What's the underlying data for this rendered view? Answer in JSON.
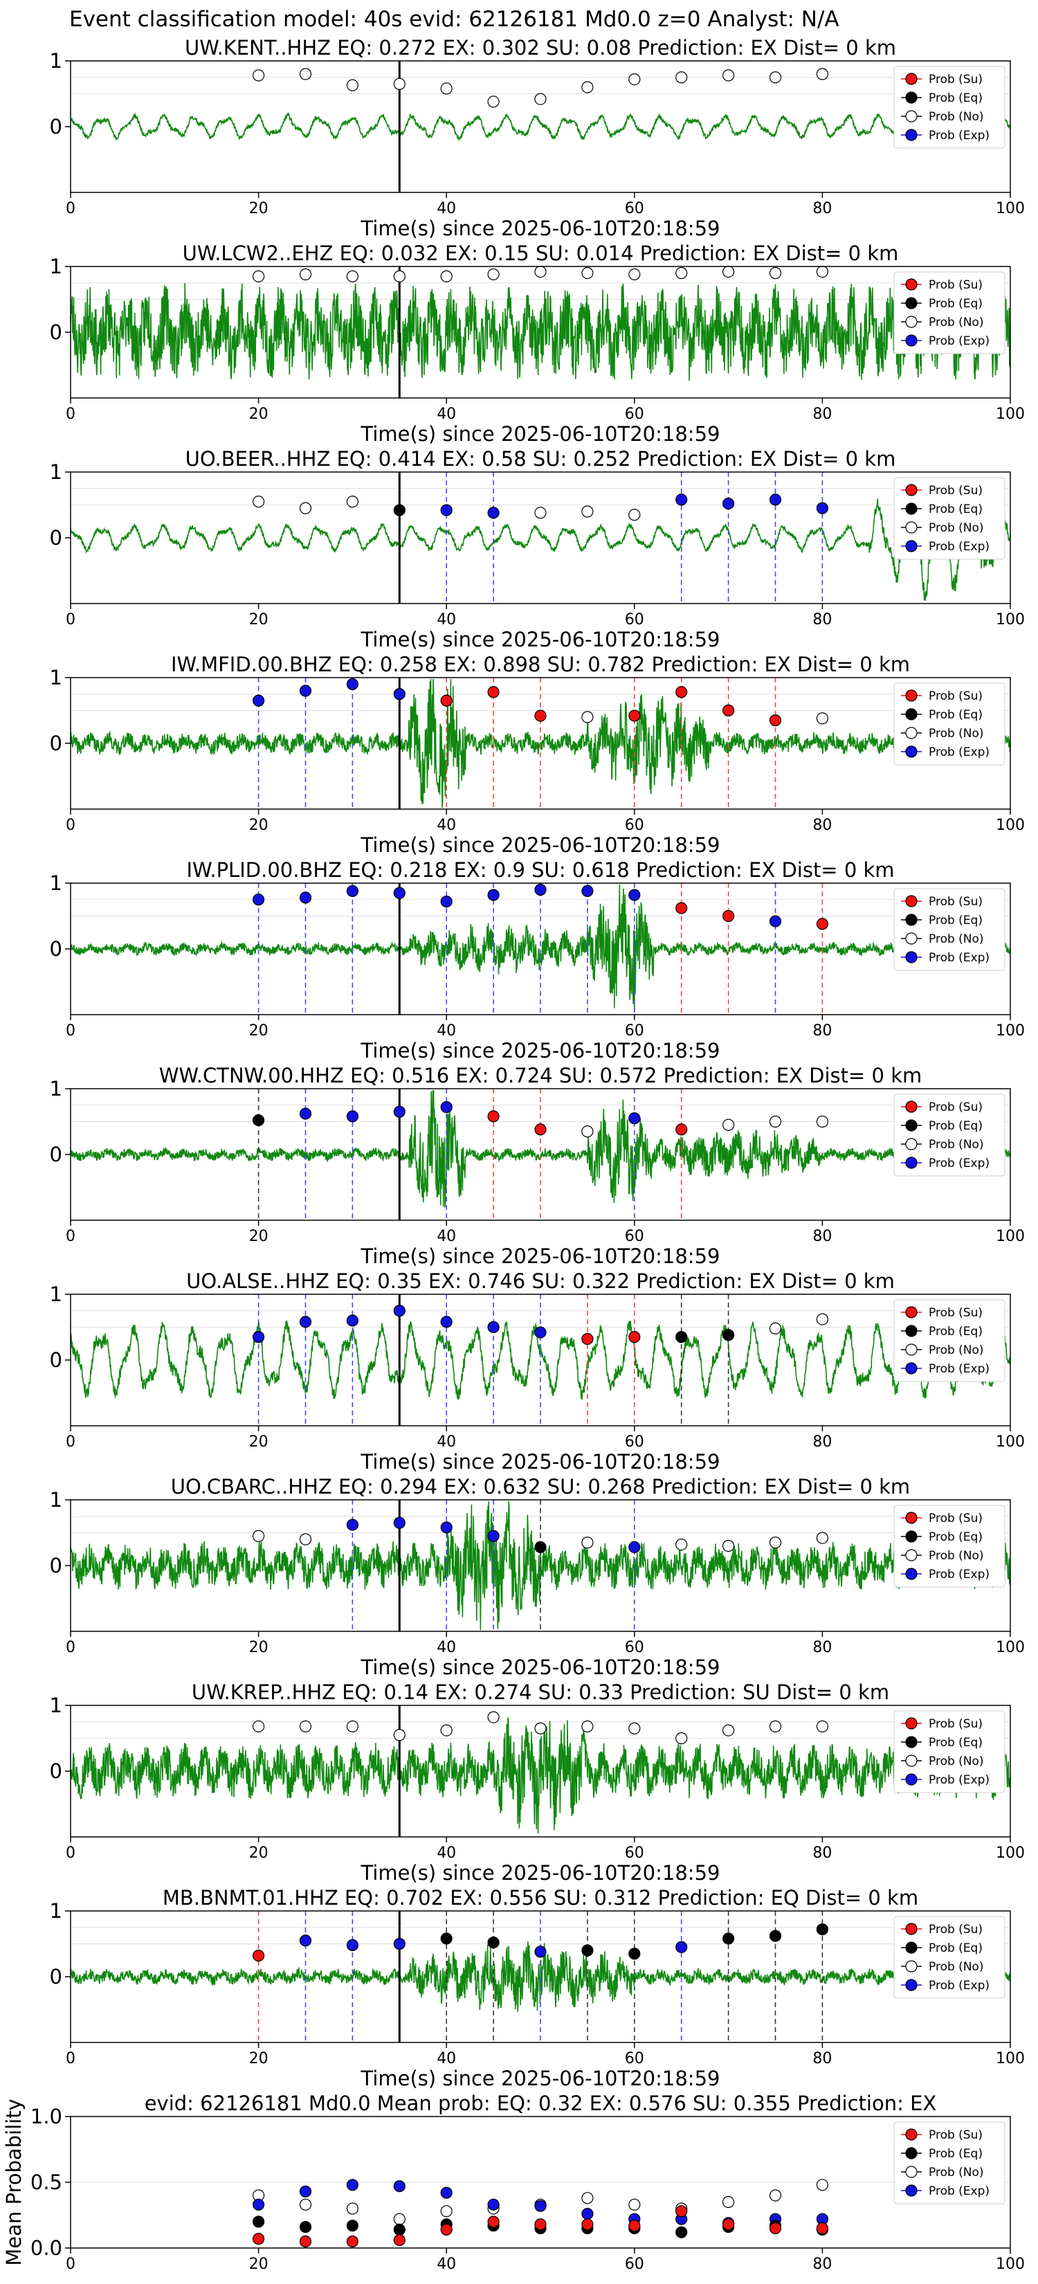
{
  "figure_title": "Event classification model: 40s evid: 62126181 Md0.0 z=0 Analyst: N/A",
  "xlabel": "Time(s) since 2025-06-10T20:18:59",
  "x_ticks": [
    0,
    20,
    40,
    60,
    80,
    100
  ],
  "legend": [
    "Prob (Su)",
    "Prob (Eq)",
    "Prob (No)",
    "Prob (Exp)"
  ],
  "colors": {
    "Su": "#ee1111",
    "Eq": "#000000",
    "No": "#ffffff",
    "Exp": "#1111dd",
    "waveform": "#118811",
    "vline_su": "#ee4444",
    "vline_eq": "#333333",
    "vline_exp": "#4444ee"
  },
  "window_times": [
    20,
    25,
    30,
    35,
    40,
    45,
    50,
    55,
    60,
    65,
    70,
    75,
    80
  ],
  "chart_data": [
    {
      "type": "line",
      "title": "UW.KENT..HHZ   EQ: 0.272   EX: 0.302   SU: 0.08   Prediction: EX    Dist= 0 km",
      "xlim": [
        0,
        100
      ],
      "ylim": [
        -1,
        1
      ],
      "y_ticks": [
        0,
        1
      ],
      "marker": 35,
      "waveform": {
        "seed": 11,
        "style": "smooth",
        "amp": 0.18,
        "burst": []
      },
      "points": [
        [
          "No",
          0.78
        ],
        [
          "No",
          0.8
        ],
        [
          "No",
          0.63
        ],
        [
          "No",
          0.65
        ],
        [
          "No",
          0.58
        ],
        [
          "No",
          0.38
        ],
        [
          "No",
          0.42
        ],
        [
          "No",
          0.6
        ],
        [
          "No",
          0.72
        ],
        [
          "No",
          0.75
        ],
        [
          "No",
          0.78
        ],
        [
          "No",
          0.75
        ],
        [
          "No",
          0.8
        ]
      ]
    },
    {
      "type": "line",
      "title": "UW.LCW2..EHZ   EQ: 0.032   EX: 0.15   SU: 0.014   Prediction: EX    Dist= 0 km",
      "xlim": [
        0,
        100
      ],
      "ylim": [
        -1,
        1
      ],
      "y_ticks": [
        0,
        1
      ],
      "marker": 35,
      "waveform": {
        "seed": 23,
        "style": "noise",
        "amp": 0.6,
        "burst": []
      },
      "points": [
        [
          "No",
          0.85
        ],
        [
          "No",
          0.88
        ],
        [
          "No",
          0.85
        ],
        [
          "No",
          0.85
        ],
        [
          "No",
          0.85
        ],
        [
          "No",
          0.88
        ],
        [
          "No",
          0.92
        ],
        [
          "No",
          0.9
        ],
        [
          "No",
          0.88
        ],
        [
          "No",
          0.9
        ],
        [
          "No",
          0.92
        ],
        [
          "No",
          0.9
        ],
        [
          "No",
          0.92
        ]
      ]
    },
    {
      "type": "line",
      "title": "UO.BEER..HHZ   EQ: 0.414   EX: 0.58   SU: 0.252   Prediction: EX    Dist= 0 km",
      "xlim": [
        0,
        100
      ],
      "ylim": [
        -1,
        1
      ],
      "y_ticks": [
        0,
        1
      ],
      "marker": 35,
      "waveform": {
        "seed": 37,
        "style": "smooth",
        "amp": 0.2,
        "burst": [
          [
            85,
            100,
            0.7
          ]
        ]
      },
      "points": [
        [
          "No",
          0.55
        ],
        [
          "No",
          0.45
        ],
        [
          "No",
          0.55
        ],
        [
          "Eq",
          0.42
        ],
        [
          "Exp",
          0.42
        ],
        [
          "Exp",
          0.38
        ],
        [
          "No",
          0.38
        ],
        [
          "No",
          0.4
        ],
        [
          "No",
          0.35
        ],
        [
          "Exp",
          0.58
        ],
        [
          "Exp",
          0.52
        ],
        [
          "Exp",
          0.58
        ],
        [
          "Exp",
          0.45
        ]
      ]
    },
    {
      "type": "line",
      "title": "IW.MFID.00.BHZ   EQ: 0.258   EX: 0.898   SU: 0.782   Prediction: EX    Dist= 0 km",
      "xlim": [
        0,
        100
      ],
      "ylim": [
        -1,
        1
      ],
      "y_ticks": [
        0,
        1
      ],
      "marker": 35,
      "waveform": {
        "seed": 41,
        "style": "noise",
        "amp": 0.14,
        "burst": [
          [
            36,
            42,
            0.85
          ],
          [
            55,
            68,
            0.5
          ]
        ]
      },
      "points": [
        [
          "Exp",
          0.65
        ],
        [
          "Exp",
          0.8
        ],
        [
          "Exp",
          0.9
        ],
        [
          "Exp",
          0.75
        ],
        [
          "Su",
          0.65
        ],
        [
          "Su",
          0.78
        ],
        [
          "Su",
          0.42
        ],
        [
          "No",
          0.4
        ],
        [
          "Su",
          0.42
        ],
        [
          "Su",
          0.78
        ],
        [
          "Su",
          0.5
        ],
        [
          "Su",
          0.35
        ],
        [
          "No",
          0.38
        ]
      ]
    },
    {
      "type": "line",
      "title": "IW.PLID.00.BHZ   EQ: 0.218   EX: 0.9   SU: 0.618   Prediction: EX    Dist= 0 km",
      "xlim": [
        0,
        100
      ],
      "ylim": [
        -1,
        1
      ],
      "y_ticks": [
        0,
        1
      ],
      "marker": 35,
      "waveform": {
        "seed": 53,
        "style": "noise",
        "amp": 0.08,
        "burst": [
          [
            36,
            55,
            0.25
          ],
          [
            55,
            62,
            0.9
          ]
        ]
      },
      "points": [
        [
          "Exp",
          0.75
        ],
        [
          "Exp",
          0.78
        ],
        [
          "Exp",
          0.88
        ],
        [
          "Exp",
          0.85
        ],
        [
          "Exp",
          0.72
        ],
        [
          "Exp",
          0.82
        ],
        [
          "Exp",
          0.9
        ],
        [
          "Exp",
          0.88
        ],
        [
          "Exp",
          0.82
        ],
        [
          "Su",
          0.62
        ],
        [
          "Su",
          0.5
        ],
        [
          "Exp",
          0.42
        ],
        [
          "Su",
          0.38
        ]
      ]
    },
    {
      "type": "line",
      "title": "WW.CTNW.00.HHZ   EQ: 0.516   EX: 0.724   SU: 0.572   Prediction: EX    Dist= 0 km",
      "xlim": [
        0,
        100
      ],
      "ylim": [
        -1,
        1
      ],
      "y_ticks": [
        0,
        1
      ],
      "marker": 35,
      "waveform": {
        "seed": 67,
        "style": "noise",
        "amp": 0.08,
        "burst": [
          [
            36,
            42,
            0.8
          ],
          [
            55,
            62,
            0.6
          ],
          [
            62,
            80,
            0.25
          ]
        ]
      },
      "points": [
        [
          "Eq",
          0.52
        ],
        [
          "Exp",
          0.62
        ],
        [
          "Exp",
          0.58
        ],
        [
          "Exp",
          0.65
        ],
        [
          "Exp",
          0.72
        ],
        [
          "Su",
          0.58
        ],
        [
          "Su",
          0.38
        ],
        [
          "No",
          0.35
        ],
        [
          "Exp",
          0.55
        ],
        [
          "Su",
          0.38
        ],
        [
          "No",
          0.45
        ],
        [
          "No",
          0.5
        ],
        [
          "No",
          0.5
        ]
      ]
    },
    {
      "type": "line",
      "title": "UO.ALSE..HHZ   EQ: 0.35  EX: 0.746  SU: 0.322   Prediction: EX    Dist= 0 km",
      "xlim": [
        0,
        100
      ],
      "ylim": [
        -1,
        1
      ],
      "y_ticks": [
        0,
        1
      ],
      "marker": 35,
      "waveform": {
        "seed": 79,
        "style": "smooth",
        "amp": 0.55,
        "burst": []
      },
      "points": [
        [
          "Exp",
          0.35
        ],
        [
          "Exp",
          0.58
        ],
        [
          "Exp",
          0.6
        ],
        [
          "Exp",
          0.75
        ],
        [
          "Exp",
          0.58
        ],
        [
          "Exp",
          0.5
        ],
        [
          "Exp",
          0.42
        ],
        [
          "Su",
          0.32
        ],
        [
          "Su",
          0.35
        ],
        [
          "Eq",
          0.35
        ],
        [
          "Eq",
          0.38
        ],
        [
          "No",
          0.48
        ],
        [
          "No",
          0.62
        ]
      ]
    },
    {
      "type": "line",
      "title": "UO.CBARC..HHZ   EQ: 0.294   EX: 0.632   SU: 0.268   Prediction: EX    Dist= 0 km",
      "xlim": [
        0,
        100
      ],
      "ylim": [
        -1,
        1
      ],
      "y_ticks": [
        0,
        1
      ],
      "marker": 35,
      "waveform": {
        "seed": 83,
        "style": "noise",
        "amp": 0.3,
        "burst": [
          [
            40,
            50,
            0.6
          ]
        ]
      },
      "points": [
        [
          "No",
          0.45
        ],
        [
          "No",
          0.4
        ],
        [
          "Exp",
          0.62
        ],
        [
          "Exp",
          0.65
        ],
        [
          "Exp",
          0.58
        ],
        [
          "Exp",
          0.45
        ],
        [
          "Eq",
          0.28
        ],
        [
          "No",
          0.35
        ],
        [
          "Exp",
          0.28
        ],
        [
          "No",
          0.32
        ],
        [
          "No",
          0.3
        ],
        [
          "No",
          0.35
        ],
        [
          "No",
          0.42
        ]
      ]
    },
    {
      "type": "line",
      "title": "UW.KREP..HHZ   EQ: 0.14   EX: 0.274   SU: 0.33   Prediction: SU    Dist= 0 km",
      "xlim": [
        0,
        100
      ],
      "ylim": [
        -1,
        1
      ],
      "y_ticks": [
        0,
        1
      ],
      "marker": 35,
      "waveform": {
        "seed": 97,
        "style": "noise",
        "amp": 0.35,
        "burst": [
          [
            45,
            55,
            0.45
          ]
        ]
      },
      "points": [
        [
          "No",
          0.68
        ],
        [
          "No",
          0.68
        ],
        [
          "No",
          0.68
        ],
        [
          "No",
          0.55
        ],
        [
          "No",
          0.62
        ],
        [
          "No",
          0.82
        ],
        [
          "No",
          0.65
        ],
        [
          "No",
          0.68
        ],
        [
          "No",
          0.65
        ],
        [
          "No",
          0.5
        ],
        [
          "No",
          0.62
        ],
        [
          "No",
          0.68
        ],
        [
          "No",
          0.68
        ]
      ]
    },
    {
      "type": "line",
      "title": "MB.BNMT.01.HHZ   EQ: 0.702  EX: 0.556  SU: 0.312   Prediction: EQ    Dist= 0 km",
      "xlim": [
        0,
        100
      ],
      "ylim": [
        -1,
        1
      ],
      "y_ticks": [
        0,
        1
      ],
      "marker": 35,
      "waveform": {
        "seed": 101,
        "style": "noise",
        "amp": 0.1,
        "burst": [
          [
            36,
            60,
            0.35
          ]
        ]
      },
      "points": [
        [
          "Su",
          0.32
        ],
        [
          "Exp",
          0.55
        ],
        [
          "Exp",
          0.48
        ],
        [
          "Exp",
          0.5
        ],
        [
          "Eq",
          0.58
        ],
        [
          "Eq",
          0.52
        ],
        [
          "Exp",
          0.38
        ],
        [
          "Eq",
          0.4
        ],
        [
          "Eq",
          0.35
        ],
        [
          "Exp",
          0.45
        ],
        [
          "Eq",
          0.58
        ],
        [
          "Eq",
          0.62
        ],
        [
          "Eq",
          0.72
        ]
      ]
    },
    {
      "type": "scatter",
      "title": "evid: 62126181  Md0.0   Mean prob:   EQ: 0.32  EX: 0.576  SU: 0.355   Prediction: EX",
      "ylabel": "Mean Probability",
      "xlim": [
        0,
        100
      ],
      "ylim": [
        0,
        1
      ],
      "y_ticks": [
        0.0,
        0.5,
        1.0
      ],
      "series": [
        {
          "name": "Prob (Su)",
          "values": [
            0.07,
            0.05,
            0.05,
            0.06,
            0.14,
            0.2,
            0.18,
            0.18,
            0.17,
            0.28,
            0.18,
            0.15,
            0.15
          ]
        },
        {
          "name": "Prob (Eq)",
          "values": [
            0.2,
            0.16,
            0.17,
            0.14,
            0.18,
            0.17,
            0.15,
            0.15,
            0.15,
            0.12,
            0.16,
            0.17,
            0.14
          ]
        },
        {
          "name": "Prob (No)",
          "values": [
            0.4,
            0.33,
            0.3,
            0.22,
            0.28,
            0.3,
            0.33,
            0.38,
            0.33,
            0.3,
            0.35,
            0.4,
            0.48
          ]
        },
        {
          "name": "Prob (Exp)",
          "values": [
            0.33,
            0.43,
            0.48,
            0.47,
            0.42,
            0.33,
            0.32,
            0.26,
            0.22,
            0.22,
            0.19,
            0.22,
            0.22
          ]
        }
      ]
    }
  ]
}
